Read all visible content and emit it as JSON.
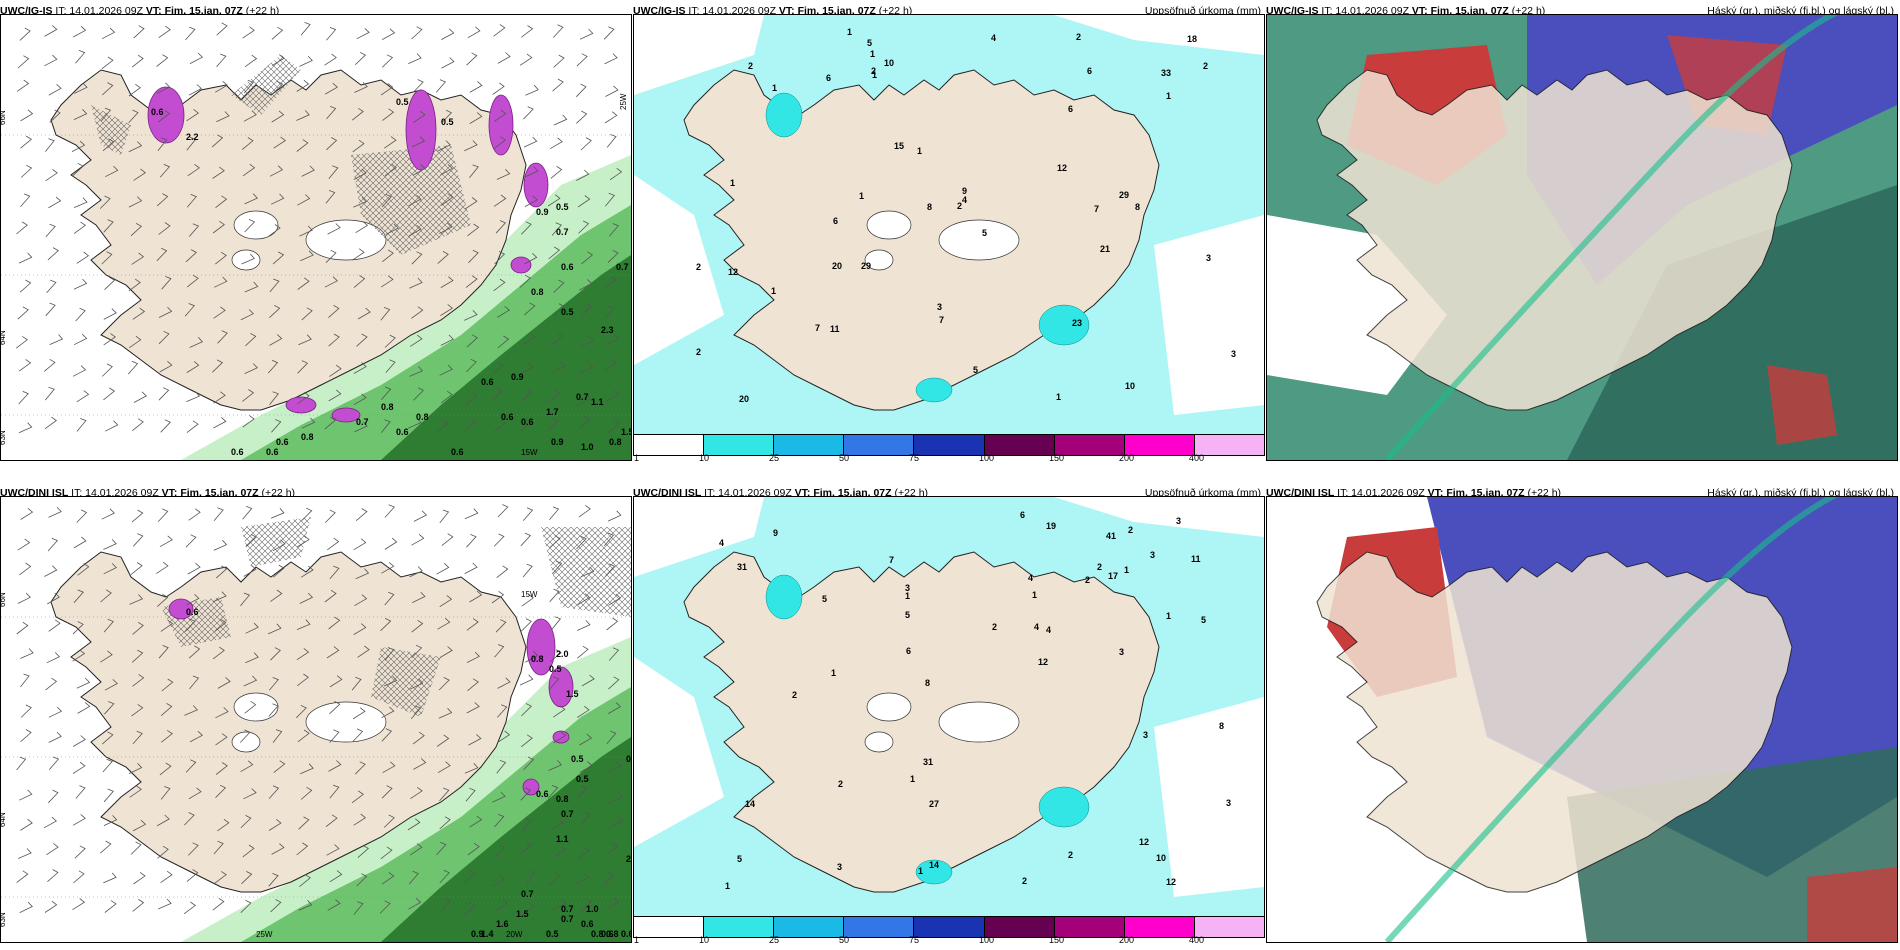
{
  "colors": {
    "land": "#efe3d3",
    "sea": "#ffffff",
    "precip_light": "#c8f0c8",
    "precip_mid": "#6fc46f",
    "precip_dark": "#2e7d32",
    "snow_purple": "#c24dd0",
    "accum_cyan": "#aef6f6",
    "cloud_high": "#c83c3c",
    "cloud_mid": "#4b4fbe",
    "cloud_low": "#2f6b5c"
  },
  "panels": [
    {
      "id": "igis-precip-wind",
      "model": "UWC/IG-IS",
      "it": "IT: 14.01.2026 09Z",
      "vt_label": "VT:",
      "vt": "Fim. 15.jan. 07Z",
      "lead": "(+22 h)",
      "right_title": "",
      "lat_labels": [
        "66N",
        "64N",
        "63N"
      ],
      "lon_labels": [
        "25W",
        "15W"
      ],
      "values": [
        "0.6",
        "2.2",
        "0.5",
        "0.5",
        "0.9",
        "0.5",
        "0.7",
        "0.8",
        "0.6",
        "0.5",
        "0.7",
        "0.9",
        "1.1",
        "1.7",
        "0.7",
        "0.9",
        "0.6",
        "0.6",
        "0.8",
        "0.8",
        "0.7",
        "0.6",
        "0.8",
        "0.6",
        "0.6",
        "1.0",
        "1.5",
        "0.8",
        "0.6",
        "0.6",
        "2.3",
        "0.6"
      ]
    },
    {
      "id": "igis-accum",
      "model": "UWC/IG-IS",
      "it": "IT: 14.01.2026 09Z",
      "vt_label": "VT:",
      "vt": "Fim. 15.jan. 07Z",
      "lead": "(+22 h)",
      "right_title": "Uppsöfnuð úrkoma (mm)",
      "values": [
        "2",
        "2",
        "2",
        "1",
        "1",
        "1",
        "2",
        "3",
        "21",
        "18",
        "29",
        "12",
        "15",
        "3",
        "1",
        "2",
        "6",
        "1",
        "6",
        "5",
        "2",
        "10",
        "1",
        "1",
        "2",
        "1",
        "8",
        "5",
        "12",
        "7",
        "11",
        "20",
        "8",
        "33",
        "9",
        "7",
        "6",
        "6",
        "7",
        "1",
        "1",
        "3",
        "5",
        "4",
        "4",
        "29",
        "23",
        "20",
        "10"
      ],
      "legend": [
        "1",
        "10",
        "25",
        "50",
        "75",
        "100",
        "150",
        "200",
        "400"
      ],
      "legend_colors": [
        "#ffffff",
        "#33e6e6",
        "#1ab9e6",
        "#3377e6",
        "#1a33b3",
        "#660050",
        "#a3007a",
        "#ff00cc",
        "#f5b3f5"
      ]
    },
    {
      "id": "igis-clouds",
      "model": "UWC/IG-IS",
      "it": "IT: 14.01.2026 09Z",
      "vt_label": "VT:",
      "vt": "Fim. 15.jan. 07Z",
      "lead": "(+22 h)",
      "right_title": "Háský (gr.), miðský (fj.bl.) og lágský (bl.)"
    },
    {
      "id": "dini-precip-wind",
      "model": "UWC/DINI ISL",
      "it": "IT: 14.01.2026 09Z",
      "vt_label": "VT:",
      "vt": "Fim. 15.jan. 07Z",
      "lead": "(+22 h)",
      "right_title": "",
      "lat_labels": [
        "66N",
        "64N",
        "63N"
      ],
      "lon_labels": [
        "25W",
        "20W",
        "15W"
      ],
      "values": [
        "0.6",
        "0.8",
        "2.0",
        "1.5",
        "0.5",
        "0.6",
        "0.8",
        "0.5",
        "0.5",
        "0.7",
        "0.5",
        "1.1",
        "2.1",
        "0.7",
        "1.5",
        "0.9",
        "1.4",
        "1.6",
        "0.7",
        "0.5",
        "0.6",
        "0.6",
        "0.7",
        "0.8",
        "0.8",
        "1.0",
        "0.6"
      ]
    },
    {
      "id": "dini-accum",
      "model": "UWC/DINI ISL",
      "it": "IT: 14.01.2026 09Z",
      "vt_label": "VT:",
      "vt": "Fim. 15.jan. 07Z",
      "lead": "(+22 h)",
      "right_title": "Uppsöfnuð úrkoma (mm)",
      "values": [
        "2",
        "5",
        "5",
        "3",
        "5",
        "1",
        "2",
        "14",
        "31",
        "27",
        "17",
        "12",
        "7",
        "8",
        "4",
        "3",
        "1",
        "3",
        "2",
        "1",
        "1",
        "2",
        "2",
        "2",
        "10",
        "19",
        "4",
        "3",
        "2",
        "3",
        "4",
        "1",
        "1",
        "1",
        "2",
        "41",
        "31",
        "6",
        "5",
        "3",
        "8",
        "9",
        "4",
        "12",
        "12",
        "11",
        "14",
        "6",
        "1",
        "3"
      ],
      "legend": [
        "1",
        "10",
        "25",
        "50",
        "75",
        "100",
        "150",
        "200",
        "400"
      ],
      "legend_colors": [
        "#ffffff",
        "#33e6e6",
        "#1ab9e6",
        "#3377e6",
        "#1a33b3",
        "#660050",
        "#a3007a",
        "#ff00cc",
        "#f5b3f5"
      ]
    },
    {
      "id": "dini-clouds",
      "model": "UWC/DINI ISL",
      "it": "IT: 14.01.2026 09Z",
      "vt_label": "VT:",
      "vt": "Fim. 15.jan. 07Z",
      "lead": "(+22 h)",
      "right_title": "Háský (gr.), miðský (fj.bl.) og lágský (bl.)"
    }
  ]
}
